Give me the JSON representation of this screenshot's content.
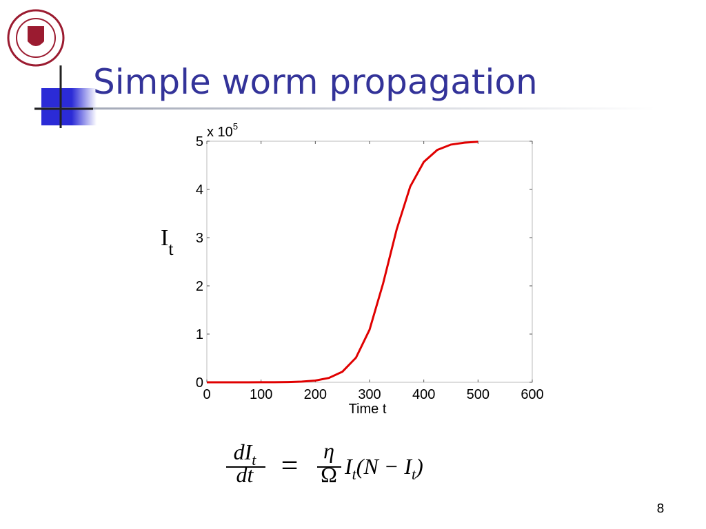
{
  "header": {
    "title": "Simple worm propagation"
  },
  "chart_data": {
    "type": "line",
    "x": [
      0,
      25,
      50,
      75,
      100,
      125,
      150,
      175,
      200,
      225,
      250,
      275,
      300,
      325,
      350,
      375,
      400,
      425,
      450,
      475,
      500
    ],
    "series": [
      {
        "name": "I_t",
        "color": "#e00000",
        "values": [
          0,
          0,
          0,
          0,
          0.001,
          0.002,
          0.006,
          0.015,
          0.036,
          0.09,
          0.22,
          0.51,
          1.09,
          2.05,
          3.17,
          4.06,
          4.57,
          4.82,
          4.93,
          4.97,
          4.99
        ]
      }
    ],
    "xlim": [
      0,
      600
    ],
    "xticks": [
      0,
      100,
      200,
      300,
      400,
      500,
      600
    ],
    "ylim": [
      0,
      5
    ],
    "yticks": [
      0,
      1,
      2,
      3,
      4,
      5
    ],
    "y_multiplier": {
      "base": "x 10",
      "exponent": "5"
    },
    "ylabel": {
      "main": "I",
      "sub": "t"
    },
    "xlabel": "Time t"
  },
  "equation": {
    "lhs_num": "dI",
    "lhs_num_sub": "t",
    "lhs_den": "dt",
    "eq": "=",
    "rhs_num": "η",
    "rhs_den": "Ω",
    "rhs": "I",
    "rhs_sub": "t",
    "rhs_rest": "(N − I",
    "rhs_sub2": "t",
    "rhs_close": ")"
  },
  "footer": {
    "page": "8"
  }
}
